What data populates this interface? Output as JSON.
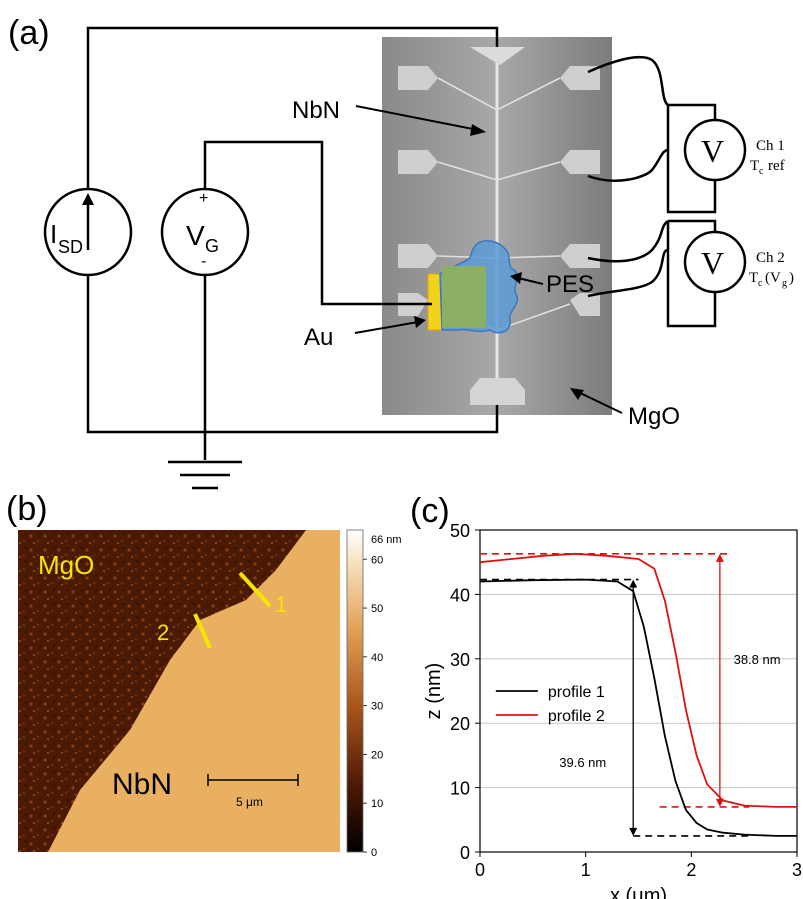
{
  "panel_a": {
    "label": "(a)",
    "sources": {
      "current": "I",
      "current_sub": "SD",
      "voltage": "V",
      "voltage_sub": "G",
      "plus": "+",
      "minus": "-"
    },
    "labels": {
      "nbn": "NbN",
      "pes": "PES",
      "au": "Au",
      "mgo": "MgO"
    },
    "voltmeters": [
      {
        "symbol": "V",
        "ch": "Ch 1",
        "desc": "ref",
        "desc_main": "T",
        "desc_sub": "c"
      },
      {
        "symbol": "V",
        "ch": "Ch 2",
        "desc_main": "T",
        "desc_sub": "c",
        "desc_arg": "(V",
        "desc_arg_sub": "g",
        "desc_close": ")"
      }
    ],
    "colors": {
      "au": "#f2d21a",
      "pes": "#5b9bd5",
      "pes_overlap": "#8fb35a",
      "substrate": "#9a9a9a"
    }
  },
  "panel_b": {
    "label": "(b)",
    "labels": {
      "mgo": "MgO",
      "nbn": "NbN",
      "line1": "1",
      "line2": "2"
    },
    "scalebar": "5 μm",
    "colorbar": {
      "max_label": "66 nm",
      "ticks": [
        "60",
        "50",
        "40",
        "30",
        "20",
        "10",
        "0"
      ]
    },
    "colors": {
      "mgo": "#4a1a05",
      "nbn": "#e8b060",
      "marker": "#f5e600"
    }
  },
  "panel_c": {
    "label": "(c)",
    "annotations": {
      "step2": "38.8 nm",
      "step1": "39.6 nm"
    }
  },
  "chart_data": {
    "type": "line",
    "xlabel": "x (μm)",
    "ylabel": "z (nm)",
    "xlim": [
      0,
      3
    ],
    "ylim": [
      0,
      50
    ],
    "xticks": [
      "0",
      "1",
      "2",
      "3"
    ],
    "yticks": [
      "0",
      "10",
      "20",
      "30",
      "40",
      "50"
    ],
    "grid": true,
    "legend": "center-left",
    "series": [
      {
        "name": "profile 1",
        "color": "#000000",
        "x": [
          0,
          0.5,
          1.0,
          1.3,
          1.45,
          1.55,
          1.65,
          1.75,
          1.85,
          1.95,
          2.05,
          2.15,
          2.3,
          2.5,
          2.8,
          3.0
        ],
        "y": [
          42.0,
          42.2,
          42.3,
          42.0,
          40.5,
          35.0,
          27.0,
          18.0,
          11.0,
          6.5,
          4.5,
          3.5,
          3.0,
          2.7,
          2.5,
          2.5
        ]
      },
      {
        "name": "profile 2",
        "color": "#e01010",
        "x": [
          0,
          0.3,
          0.6,
          0.9,
          1.2,
          1.5,
          1.65,
          1.75,
          1.85,
          1.95,
          2.05,
          2.15,
          2.3,
          2.5,
          2.8,
          3.0
        ],
        "y": [
          45.0,
          45.5,
          46.0,
          46.3,
          46.0,
          45.5,
          44.0,
          39.0,
          31.0,
          22.0,
          15.0,
          10.5,
          8.0,
          7.2,
          7.0,
          7.0
        ]
      }
    ]
  }
}
